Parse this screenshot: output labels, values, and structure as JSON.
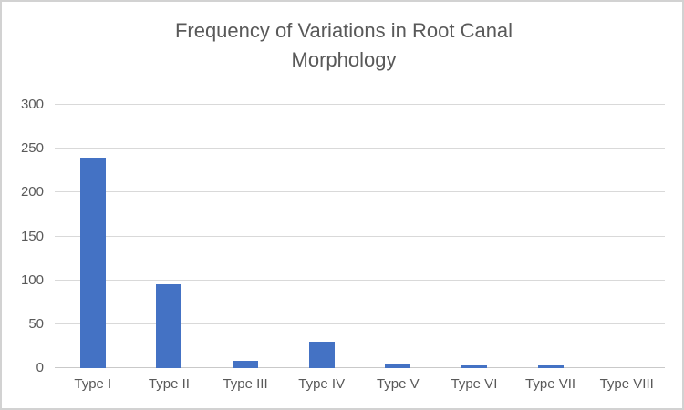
{
  "chart_data": {
    "type": "bar",
    "title": "Frequency of Variations in Root Canal Morphology",
    "categories": [
      "Type I",
      "Type II",
      "Type III",
      "Type IV",
      "Type V",
      "Type VI",
      "Type VII",
      "Type VIII"
    ],
    "values": [
      240,
      96,
      8,
      30,
      5,
      3,
      3,
      0
    ],
    "xlabel": "",
    "ylabel": "",
    "ylim": [
      0,
      300
    ],
    "yticks": [
      0,
      50,
      100,
      150,
      200,
      250,
      300
    ],
    "grid": true,
    "legend_position": "none",
    "bar_color": "#4472C4",
    "title_color": "#595959",
    "tick_label_color": "#595959",
    "gridline_color": "#D9D9D9",
    "axis_line_color": "#C9C9C9"
  }
}
